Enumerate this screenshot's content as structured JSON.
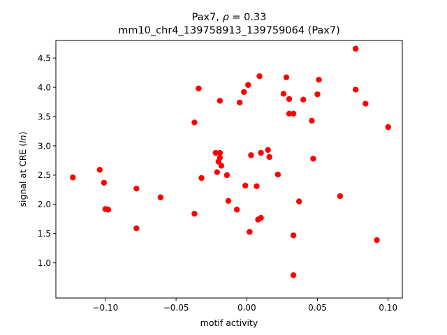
{
  "chart_data": {
    "type": "scatter",
    "title_line1_prefix": "Pax7, ",
    "title_rho_symbol": "ρ",
    "title_rho_value": " = 0.33",
    "title_line2": "mm10_chr4_139758913_139759064 (Pax7)",
    "xlabel": "motif activity",
    "ylabel_prefix": "signal at CRE (",
    "ylabel_italic": "ln",
    "ylabel_suffix": ")",
    "xlim": [
      -0.135,
      0.11
    ],
    "ylim": [
      0.4,
      4.8
    ],
    "xticks": [
      -0.1,
      -0.05,
      0.0,
      0.05,
      0.1
    ],
    "xtick_labels": [
      "−0.10",
      "−0.05",
      "0.00",
      "0.05",
      "0.10"
    ],
    "yticks": [
      1.0,
      1.5,
      2.0,
      2.5,
      3.0,
      3.5,
      4.0,
      4.5
    ],
    "ytick_labels": [
      "1.0",
      "1.5",
      "2.0",
      "2.5",
      "3.0",
      "3.5",
      "4.0",
      "4.5"
    ],
    "grid": false,
    "marker_color": "#ff0000",
    "points": [
      {
        "x": -0.123,
        "y": 2.46
      },
      {
        "x": -0.104,
        "y": 2.59
      },
      {
        "x": -0.101,
        "y": 2.37
      },
      {
        "x": -0.1,
        "y": 1.92
      },
      {
        "x": -0.098,
        "y": 1.91
      },
      {
        "x": -0.078,
        "y": 2.27
      },
      {
        "x": -0.078,
        "y": 1.59
      },
      {
        "x": -0.061,
        "y": 2.12
      },
      {
        "x": -0.037,
        "y": 3.4
      },
      {
        "x": -0.037,
        "y": 1.84
      },
      {
        "x": -0.034,
        "y": 3.98
      },
      {
        "x": -0.032,
        "y": 2.45
      },
      {
        "x": -0.022,
        "y": 2.88
      },
      {
        "x": -0.021,
        "y": 2.55
      },
      {
        "x": -0.02,
        "y": 2.73
      },
      {
        "x": -0.019,
        "y": 2.8
      },
      {
        "x": -0.019,
        "y": 2.88
      },
      {
        "x": -0.019,
        "y": 3.77
      },
      {
        "x": -0.018,
        "y": 2.66
      },
      {
        "x": -0.014,
        "y": 2.5
      },
      {
        "x": -0.013,
        "y": 2.06
      },
      {
        "x": -0.007,
        "y": 1.91
      },
      {
        "x": -0.005,
        "y": 3.74
      },
      {
        "x": -0.002,
        "y": 3.92
      },
      {
        "x": -0.001,
        "y": 2.32
      },
      {
        "x": 0.001,
        "y": 4.04
      },
      {
        "x": 0.002,
        "y": 1.53
      },
      {
        "x": 0.003,
        "y": 2.84
      },
      {
        "x": 0.007,
        "y": 2.31
      },
      {
        "x": 0.008,
        "y": 1.74
      },
      {
        "x": 0.009,
        "y": 4.19
      },
      {
        "x": 0.01,
        "y": 1.77
      },
      {
        "x": 0.01,
        "y": 2.88
      },
      {
        "x": 0.015,
        "y": 2.93
      },
      {
        "x": 0.016,
        "y": 2.81
      },
      {
        "x": 0.022,
        "y": 2.51
      },
      {
        "x": 0.026,
        "y": 3.89
      },
      {
        "x": 0.028,
        "y": 4.17
      },
      {
        "x": 0.03,
        "y": 3.8
      },
      {
        "x": 0.03,
        "y": 3.55
      },
      {
        "x": 0.033,
        "y": 3.55
      },
      {
        "x": 0.033,
        "y": 1.47
      },
      {
        "x": 0.033,
        "y": 0.79
      },
      {
        "x": 0.037,
        "y": 2.05
      },
      {
        "x": 0.04,
        "y": 3.79
      },
      {
        "x": 0.046,
        "y": 3.43
      },
      {
        "x": 0.047,
        "y": 2.78
      },
      {
        "x": 0.05,
        "y": 3.88
      },
      {
        "x": 0.051,
        "y": 4.13
      },
      {
        "x": 0.066,
        "y": 2.14
      },
      {
        "x": 0.077,
        "y": 4.66
      },
      {
        "x": 0.077,
        "y": 3.96
      },
      {
        "x": 0.084,
        "y": 3.72
      },
      {
        "x": 0.092,
        "y": 1.39
      },
      {
        "x": 0.1,
        "y": 3.32
      }
    ]
  }
}
